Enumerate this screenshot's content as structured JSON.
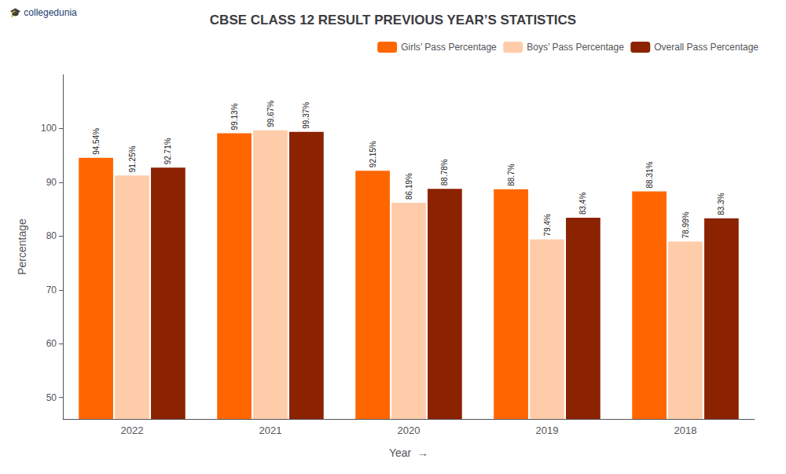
{
  "chart_data": {
    "type": "bar",
    "title": "CBSE CLASS 12 RESULT PREVIOUS YEAR’S STATISTICS",
    "x_label": "Year  →",
    "y_label": "Percentage",
    "annotations": [
      "🎓 collegedunia"
    ],
    "categories": [
      "2022",
      "2021",
      "2020",
      "2019",
      "2018"
    ],
    "series": [
      {
        "name": "Girls’ Pass Percentage",
        "color": "#FF6600",
        "values": [
          94.54,
          99.13,
          92.15,
          88.7,
          88.31
        ],
        "value_labels": [
          "94.54%",
          "99.13%",
          "92.15%",
          "88.7%",
          "88.31%"
        ]
      },
      {
        "name": "Boys’ Pass Percentage",
        "color": "#FFCCAA",
        "values": [
          91.25,
          99.67,
          86.19,
          79.4,
          78.99
        ],
        "value_labels": [
          "91.25%",
          "99.67%",
          "86.19%",
          "79.4%",
          "78.99%"
        ]
      },
      {
        "name": "Overall Pass Percentage",
        "color": "#8B2200",
        "values": [
          92.71,
          99.37,
          88.78,
          83.4,
          83.3
        ],
        "value_labels": [
          "92.71%",
          "99.37%",
          "88.78%",
          "83.4%",
          "83.3%"
        ]
      }
    ],
    "ylim": [
      46,
      110
    ],
    "yticks": [
      50,
      60,
      70,
      80,
      90,
      100
    ],
    "grid": false,
    "legend": "upper right",
    "data_labels": true
  }
}
